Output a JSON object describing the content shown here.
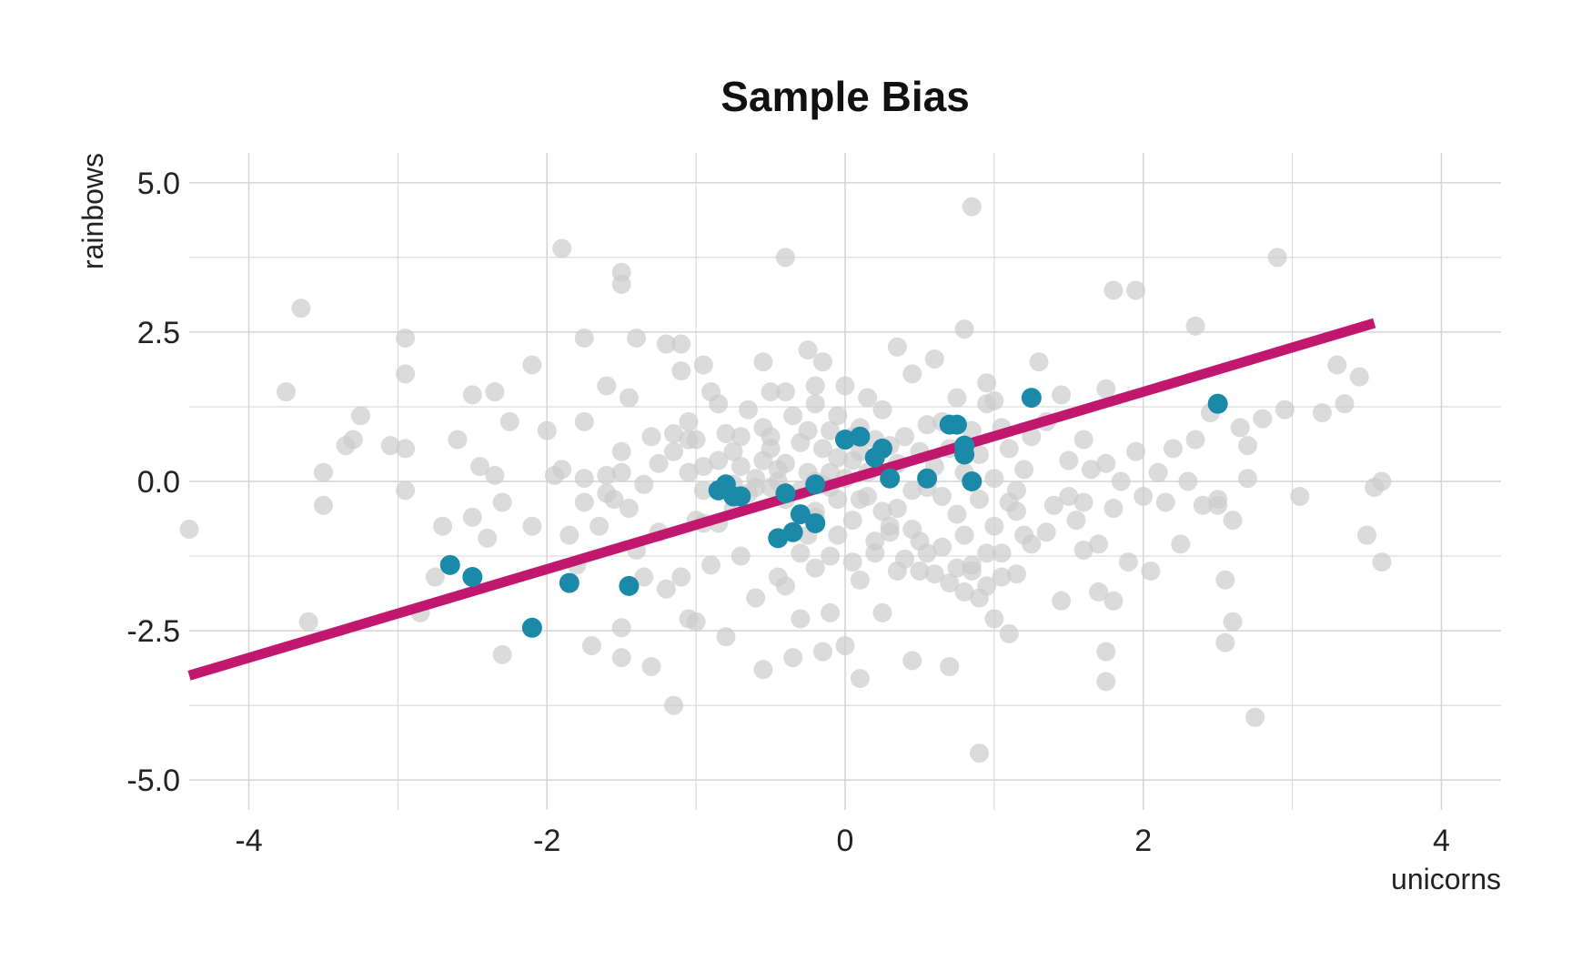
{
  "chart_data": {
    "type": "scatter",
    "title": "Sample Bias",
    "xlabel": "unicorns",
    "ylabel": "rainbows",
    "xlim": [
      -4.4,
      4.4
    ],
    "ylim": [
      -5.5,
      5.5
    ],
    "xticks": [
      -4,
      -2,
      0,
      2,
      4
    ],
    "xtick_labels": [
      "-4",
      "-2",
      "0",
      "2",
      "4"
    ],
    "yticks": [
      -5,
      -2.5,
      0,
      2.5,
      5
    ],
    "ytick_labels": [
      "-5.0",
      "-2.5",
      "0.0",
      "2.5",
      "5.0"
    ],
    "grid": true,
    "colors": {
      "population": "#cccccc",
      "sample": "#1a8aa8",
      "fit_line": "#c2176e",
      "grid": "#d4d4d4"
    },
    "series": [
      {
        "points": [
          [
            -4.4,
            -0.8
          ],
          [
            -3.75,
            1.5
          ],
          [
            -3.65,
            2.9
          ],
          [
            -3.6,
            -2.35
          ],
          [
            -3.5,
            0.15
          ],
          [
            -3.5,
            -0.4
          ],
          [
            -3.35,
            0.6
          ],
          [
            -3.3,
            0.7
          ],
          [
            -3.25,
            1.1
          ],
          [
            -3.05,
            0.6
          ],
          [
            -2.95,
            -0.15
          ],
          [
            -2.85,
            -2.2
          ],
          [
            -2.95,
            2.4
          ],
          [
            -2.95,
            1.8
          ],
          [
            -2.95,
            0.55
          ],
          [
            -2.75,
            -1.6
          ],
          [
            -2.7,
            -0.75
          ],
          [
            -2.6,
            0.7
          ],
          [
            -2.5,
            -0.6
          ],
          [
            -2.5,
            1.45
          ],
          [
            -2.45,
            0.25
          ],
          [
            -2.4,
            -0.95
          ],
          [
            -2.35,
            1.5
          ],
          [
            -2.35,
            0.1
          ],
          [
            -2.3,
            -2.9
          ],
          [
            -2.3,
            -0.35
          ],
          [
            -2.25,
            1.0
          ],
          [
            -2.1,
            1.95
          ],
          [
            -2.1,
            -0.75
          ],
          [
            -2.0,
            0.85
          ],
          [
            -1.95,
            0.1
          ],
          [
            -1.9,
            0.2
          ],
          [
            -1.9,
            3.9
          ],
          [
            -1.85,
            -0.9
          ],
          [
            -1.8,
            -1.4
          ],
          [
            -1.75,
            1.0
          ],
          [
            -1.75,
            2.4
          ],
          [
            -1.75,
            -0.35
          ],
          [
            -1.75,
            0.05
          ],
          [
            -1.7,
            -2.75
          ],
          [
            -1.65,
            -0.75
          ],
          [
            -1.6,
            0.1
          ],
          [
            -1.6,
            1.6
          ],
          [
            -1.6,
            -0.2
          ],
          [
            -1.55,
            -0.3
          ],
          [
            -1.5,
            3.5
          ],
          [
            -1.5,
            3.3
          ],
          [
            -1.5,
            0.5
          ],
          [
            -1.5,
            -2.45
          ],
          [
            -1.5,
            -2.95
          ],
          [
            -1.5,
            0.15
          ],
          [
            -1.45,
            -0.45
          ],
          [
            -1.45,
            1.4
          ],
          [
            -1.4,
            -1.15
          ],
          [
            -1.4,
            2.4
          ],
          [
            -1.35,
            -1.6
          ],
          [
            -1.3,
            -3.1
          ],
          [
            -1.3,
            0.75
          ],
          [
            -1.25,
            -0.85
          ],
          [
            -1.2,
            -1.8
          ],
          [
            -1.2,
            2.3
          ],
          [
            -1.15,
            -3.75
          ],
          [
            -1.15,
            0.8
          ],
          [
            -1.1,
            -1.6
          ],
          [
            -1.1,
            2.3
          ],
          [
            -1.1,
            1.85
          ],
          [
            -1.05,
            1.0
          ],
          [
            -1.05,
            0.7
          ],
          [
            -1.05,
            -2.3
          ],
          [
            -1.0,
            -0.65
          ],
          [
            -1.0,
            -2.35
          ],
          [
            -1.0,
            0.7
          ],
          [
            -0.95,
            -0.7
          ],
          [
            -0.95,
            0.25
          ],
          [
            -0.95,
            1.95
          ],
          [
            -0.9,
            1.5
          ],
          [
            -0.9,
            -1.4
          ],
          [
            -0.85,
            -0.7
          ],
          [
            -0.85,
            1.3
          ],
          [
            -0.8,
            0.8
          ],
          [
            -0.8,
            -2.6
          ],
          [
            -0.75,
            0.5
          ],
          [
            -0.75,
            -0.45
          ],
          [
            -0.7,
            0.25
          ],
          [
            -0.7,
            -1.25
          ],
          [
            -0.65,
            1.2
          ],
          [
            -0.6,
            0.05
          ],
          [
            -0.6,
            -0.1
          ],
          [
            -0.55,
            0.9
          ],
          [
            -0.55,
            2.0
          ],
          [
            -0.5,
            -0.1
          ],
          [
            -0.5,
            1.5
          ],
          [
            -0.45,
            0.0
          ],
          [
            -0.45,
            0.2
          ],
          [
            -0.4,
            3.75
          ],
          [
            -0.4,
            1.5
          ],
          [
            -0.4,
            0.3
          ],
          [
            -0.35,
            1.1
          ],
          [
            -0.3,
            -0.15
          ],
          [
            -0.3,
            -1.2
          ],
          [
            -0.25,
            0.85
          ],
          [
            -0.25,
            2.2
          ],
          [
            -0.25,
            0.15
          ],
          [
            -0.2,
            1.3
          ],
          [
            -0.2,
            1.6
          ],
          [
            -0.2,
            -0.5
          ],
          [
            -0.15,
            -0.05
          ],
          [
            -0.15,
            2.0
          ],
          [
            -0.1,
            0.85
          ],
          [
            -0.1,
            0.15
          ],
          [
            -0.1,
            -0.1
          ],
          [
            -0.05,
            -0.3
          ],
          [
            -0.05,
            1.1
          ],
          [
            -0.05,
            0.4
          ],
          [
            0.0,
            0.7
          ],
          [
            0.0,
            1.6
          ],
          [
            0.05,
            0.75
          ],
          [
            0.05,
            -0.65
          ],
          [
            0.05,
            0.35
          ],
          [
            0.1,
            0.9
          ],
          [
            0.1,
            -0.3
          ],
          [
            0.15,
            0.15
          ],
          [
            0.15,
            1.4
          ],
          [
            0.2,
            -1.0
          ],
          [
            0.2,
            0.7
          ],
          [
            0.25,
            -0.5
          ],
          [
            0.25,
            1.2
          ],
          [
            0.3,
            0.6
          ],
          [
            0.3,
            -0.85
          ],
          [
            0.35,
            2.25
          ],
          [
            0.35,
            0.3
          ],
          [
            0.35,
            -1.5
          ],
          [
            0.4,
            0.75
          ],
          [
            0.45,
            -0.15
          ],
          [
            0.45,
            1.8
          ],
          [
            0.5,
            0.5
          ],
          [
            0.5,
            -1.0
          ],
          [
            0.55,
            0.95
          ],
          [
            0.55,
            -0.1
          ],
          [
            0.6,
            2.05
          ],
          [
            0.6,
            0.25
          ],
          [
            0.65,
            -1.1
          ],
          [
            0.65,
            1.0
          ],
          [
            0.7,
            0.55
          ],
          [
            0.75,
            1.4
          ],
          [
            0.75,
            -0.55
          ],
          [
            0.8,
            0.15
          ],
          [
            0.8,
            2.55
          ],
          [
            0.8,
            -0.9
          ],
          [
            0.85,
            0.85
          ],
          [
            0.85,
            -1.5
          ],
          [
            0.9,
            -0.3
          ],
          [
            0.9,
            0.45
          ],
          [
            0.95,
            1.3
          ],
          [
            0.95,
            -1.2
          ],
          [
            1.0,
            0.05
          ],
          [
            -0.6,
            -1.95
          ],
          [
            -0.55,
            0.35
          ],
          [
            -0.55,
            -3.15
          ],
          [
            -0.5,
            0.75
          ],
          [
            -0.45,
            -1.6
          ],
          [
            -0.4,
            -1.75
          ],
          [
            -0.4,
            -0.3
          ],
          [
            -0.35,
            -2.95
          ],
          [
            -0.3,
            -2.3
          ],
          [
            -0.25,
            -0.9
          ],
          [
            -0.2,
            -1.45
          ],
          [
            -0.2,
            -0.6
          ],
          [
            -0.15,
            -2.85
          ],
          [
            -0.1,
            -1.25
          ],
          [
            -0.1,
            -2.2
          ],
          [
            -0.05,
            -0.9
          ],
          [
            0.0,
            -2.75
          ],
          [
            0.05,
            -1.35
          ],
          [
            0.1,
            -3.3
          ],
          [
            0.1,
            -1.65
          ],
          [
            0.15,
            -0.25
          ],
          [
            0.2,
            -1.2
          ],
          [
            0.25,
            -2.2
          ],
          [
            0.3,
            -0.75
          ],
          [
            0.35,
            -0.45
          ],
          [
            0.4,
            -1.3
          ],
          [
            0.45,
            -3.0
          ],
          [
            0.45,
            -0.8
          ],
          [
            0.5,
            -1.5
          ],
          [
            0.55,
            -1.2
          ],
          [
            0.6,
            -1.55
          ],
          [
            0.65,
            -0.25
          ],
          [
            0.7,
            -1.7
          ],
          [
            0.7,
            -3.1
          ],
          [
            0.75,
            -1.45
          ],
          [
            0.8,
            -1.85
          ],
          [
            0.85,
            -1.4
          ],
          [
            0.9,
            -4.55
          ],
          [
            0.9,
            -1.95
          ],
          [
            0.95,
            -1.75
          ],
          [
            1.0,
            -0.75
          ],
          [
            1.0,
            -2.3
          ],
          [
            1.05,
            -1.2
          ],
          [
            1.05,
            -1.6
          ],
          [
            1.1,
            -2.55
          ],
          [
            1.1,
            -0.35
          ],
          [
            1.15,
            -1.55
          ],
          [
            1.2,
            -0.9
          ],
          [
            0.85,
            4.6
          ],
          [
            0.95,
            1.65
          ],
          [
            1.0,
            1.35
          ],
          [
            1.05,
            0.9
          ],
          [
            1.1,
            0.55
          ],
          [
            1.15,
            -0.15
          ],
          [
            1.2,
            0.2
          ],
          [
            1.25,
            0.75
          ],
          [
            1.3,
            2.0
          ],
          [
            1.35,
            1.0
          ],
          [
            1.4,
            -0.4
          ],
          [
            1.45,
            1.45
          ],
          [
            1.5,
            0.35
          ],
          [
            1.55,
            -0.65
          ],
          [
            1.6,
            0.7
          ],
          [
            1.6,
            -0.35
          ],
          [
            1.65,
            0.2
          ],
          [
            1.7,
            -1.05
          ],
          [
            1.75,
            1.55
          ],
          [
            1.75,
            0.3
          ],
          [
            1.8,
            3.2
          ],
          [
            1.8,
            -0.45
          ],
          [
            1.85,
            0.0
          ],
          [
            1.9,
            -1.35
          ],
          [
            1.95,
            3.2
          ],
          [
            1.95,
            0.5
          ],
          [
            2.0,
            -0.25
          ],
          [
            2.05,
            -1.5
          ],
          [
            2.1,
            0.15
          ],
          [
            2.15,
            -0.35
          ],
          [
            2.2,
            0.55
          ],
          [
            2.25,
            -1.05
          ],
          [
            2.3,
            0.0
          ],
          [
            2.35,
            2.6
          ],
          [
            2.35,
            0.7
          ],
          [
            2.4,
            -0.4
          ],
          [
            2.45,
            1.15
          ],
          [
            2.5,
            -0.3
          ],
          [
            2.55,
            -2.7
          ],
          [
            2.55,
            -1.65
          ],
          [
            2.6,
            -2.35
          ],
          [
            2.65,
            0.9
          ],
          [
            2.7,
            0.05
          ],
          [
            2.7,
            0.6
          ],
          [
            2.75,
            -3.95
          ],
          [
            2.8,
            1.05
          ],
          [
            2.9,
            3.75
          ],
          [
            2.95,
            1.2
          ],
          [
            3.05,
            -0.25
          ],
          [
            3.2,
            1.15
          ],
          [
            3.3,
            1.95
          ],
          [
            3.35,
            1.3
          ],
          [
            3.45,
            1.75
          ],
          [
            3.5,
            -0.9
          ],
          [
            3.6,
            0.0
          ],
          [
            3.6,
            -1.35
          ],
          [
            3.55,
            -0.1
          ],
          [
            1.75,
            -3.35
          ],
          [
            1.75,
            -2.85
          ],
          [
            1.8,
            -2.0
          ],
          [
            1.7,
            -1.85
          ],
          [
            1.45,
            -2.0
          ],
          [
            1.35,
            -0.85
          ],
          [
            1.25,
            -1.05
          ],
          [
            1.15,
            -0.5
          ],
          [
            2.6,
            -0.65
          ],
          [
            2.5,
            -0.4
          ],
          [
            1.5,
            -0.25
          ],
          [
            1.6,
            -1.15
          ],
          [
            -0.5,
            0.55
          ],
          [
            -0.7,
            0.75
          ],
          [
            -0.85,
            0.35
          ],
          [
            -0.95,
            -0.15
          ],
          [
            -1.05,
            0.15
          ],
          [
            -1.15,
            0.5
          ],
          [
            -1.25,
            0.3
          ],
          [
            -1.35,
            -0.05
          ],
          [
            -0.65,
            -0.2
          ],
          [
            -0.75,
            -0.05
          ],
          [
            -0.15,
            0.55
          ],
          [
            -0.3,
            0.65
          ],
          [
            0.0,
            0.05
          ],
          [
            0.1,
            0.5
          ],
          [
            -0.2,
            0.0
          ]
        ]
      },
      {
        "points": [
          [
            -2.65,
            -1.4
          ],
          [
            -2.5,
            -1.6
          ],
          [
            -2.1,
            -2.45
          ],
          [
            -1.85,
            -1.7
          ],
          [
            -1.45,
            -1.75
          ],
          [
            -0.85,
            -0.15
          ],
          [
            -0.8,
            -0.05
          ],
          [
            -0.75,
            -0.25
          ],
          [
            -0.7,
            -0.25
          ],
          [
            -0.4,
            -0.2
          ],
          [
            -0.35,
            -0.85
          ],
          [
            -0.3,
            -0.55
          ],
          [
            -0.45,
            -0.95
          ],
          [
            -0.2,
            -0.7
          ],
          [
            -0.2,
            -0.05
          ],
          [
            0.0,
            0.7
          ],
          [
            0.1,
            0.75
          ],
          [
            0.2,
            0.4
          ],
          [
            0.25,
            0.55
          ],
          [
            0.3,
            0.05
          ],
          [
            0.55,
            0.05
          ],
          [
            0.7,
            0.95
          ],
          [
            0.75,
            0.95
          ],
          [
            0.8,
            0.6
          ],
          [
            0.8,
            0.45
          ],
          [
            0.85,
            0.0
          ],
          [
            1.25,
            1.4
          ],
          [
            2.5,
            1.3
          ]
        ]
      }
    ],
    "fit_line": {
      "x": [
        -4.4,
        3.55
      ],
      "y": [
        -3.25,
        2.65
      ]
    }
  }
}
